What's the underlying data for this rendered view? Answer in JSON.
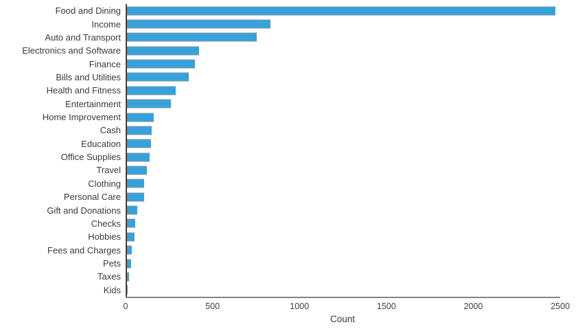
{
  "chart_data": {
    "type": "bar",
    "orientation": "horizontal",
    "title": "",
    "xlabel": "Count",
    "ylabel": "",
    "categories": [
      "Food and Dining",
      "Income",
      "Auto and Transport",
      "Electronics and Software",
      "Finance",
      "Bills and Utilities",
      "Health and Fitness",
      "Entertainment",
      "Home Improvement",
      "Cash",
      "Education",
      "Office Supplies",
      "Travel",
      "Clothing",
      "Personal Care",
      "Gift and Donations",
      "Checks",
      "Hobbies",
      "Fees and Charges",
      "Pets",
      "Taxes",
      "Kids"
    ],
    "values": [
      2470,
      830,
      750,
      420,
      395,
      360,
      285,
      255,
      158,
      147,
      143,
      134,
      120,
      103,
      102,
      65,
      50,
      46,
      30,
      29,
      16,
      5
    ],
    "xlim": [
      0,
      2500
    ],
    "xtick_labels": [
      "0",
      "500",
      "1000",
      "1500",
      "2000",
      "2500"
    ],
    "xtick_values": [
      0,
      500,
      1000,
      1500,
      2000,
      2500
    ],
    "grid": false,
    "legend": null,
    "bar_color": "#36A2DB",
    "bar_edge_color": "#8495A1",
    "axis_line_color": "#848484",
    "spine_color": "#3F3F3F",
    "text_color": "#3A3A3A"
  }
}
